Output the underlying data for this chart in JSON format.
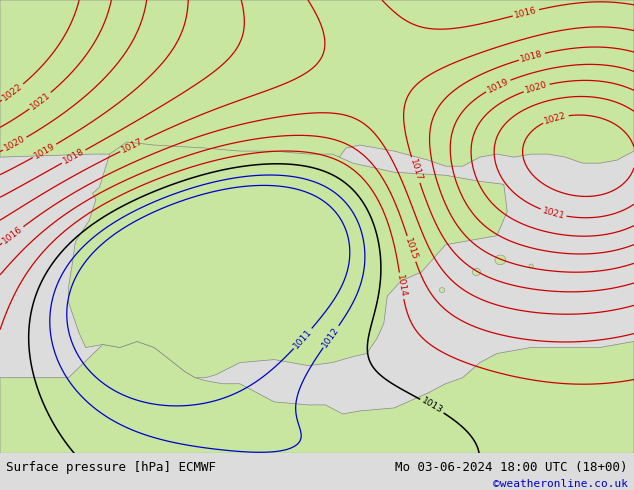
{
  "title_left": "Surface pressure [hPa] ECMWF",
  "title_right": "Mo 03-06-2024 18:00 UTC (18+00)",
  "copyright": "©weatheronline.co.uk",
  "background_color": "#dcdcdc",
  "land_color": "#c8e6a0",
  "sea_color": "#dcdcdc",
  "contour_color_red": "#cc0000",
  "contour_color_black": "#000000",
  "contour_color_blue": "#0000cc",
  "footer_bg": "#ffffff",
  "footer_text_color": "#000000",
  "copyright_color": "#0000cc",
  "font_size_footer": 9,
  "font_size_contour_label": 7
}
